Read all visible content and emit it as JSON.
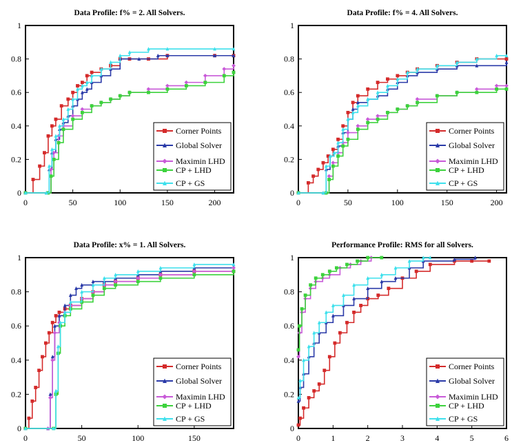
{
  "series_names": [
    "Corner Points",
    "Global Solver",
    "Maximin LHD",
    "CP + LHD",
    "CP + GS"
  ],
  "colors": {
    "Corner Points": "#d42a2a",
    "Global Solver": "#2a3aa8",
    "Maximin LHD": "#c85ad8",
    "CP + LHD": "#3cd23c",
    "CP + GS": "#3ee0ec"
  },
  "chart_data": [
    {
      "type": "line",
      "title": "Data Profile: f% = 2.   All Solvers.",
      "xlim": [
        0,
        220
      ],
      "ylim": [
        0,
        1
      ],
      "xticks": [
        0,
        50,
        100,
        150,
        200
      ],
      "yticks": [
        0,
        0.2,
        0.4,
        0.6,
        0.8,
        1
      ],
      "legend_position": "bottom-right",
      "series": [
        {
          "name": "Corner Points",
          "x": [
            0,
            8,
            15,
            20,
            24,
            28,
            32,
            38,
            45,
            50,
            55,
            60,
            65,
            70,
            80,
            90,
            100,
            110,
            130,
            150,
            200,
            220
          ],
          "y": [
            0,
            0.08,
            0.16,
            0.24,
            0.34,
            0.4,
            0.44,
            0.52,
            0.56,
            0.6,
            0.64,
            0.66,
            0.7,
            0.72,
            0.74,
            0.76,
            0.8,
            0.8,
            0.8,
            0.82,
            0.82,
            0.82
          ]
        },
        {
          "name": "Global Solver",
          "x": [
            0,
            22,
            25,
            28,
            32,
            36,
            40,
            45,
            50,
            55,
            60,
            65,
            70,
            80,
            90,
            100,
            120,
            140,
            150,
            200,
            220
          ],
          "y": [
            0,
            0,
            0.14,
            0.24,
            0.32,
            0.38,
            0.42,
            0.46,
            0.52,
            0.56,
            0.6,
            0.62,
            0.66,
            0.7,
            0.74,
            0.8,
            0.8,
            0.82,
            0.82,
            0.82,
            0.82
          ]
        },
        {
          "name": "Maximin LHD",
          "x": [
            0,
            24,
            27,
            30,
            35,
            40,
            50,
            60,
            70,
            80,
            90,
            100,
            110,
            130,
            150,
            170,
            190,
            210,
            220
          ],
          "y": [
            0,
            0,
            0.14,
            0.24,
            0.34,
            0.4,
            0.46,
            0.5,
            0.52,
            0.54,
            0.56,
            0.58,
            0.6,
            0.62,
            0.64,
            0.66,
            0.7,
            0.74,
            0.76
          ]
        },
        {
          "name": "CP + LHD",
          "x": [
            0,
            24,
            27,
            30,
            35,
            40,
            50,
            60,
            70,
            80,
            90,
            100,
            110,
            130,
            150,
            170,
            190,
            210,
            220
          ],
          "y": [
            0,
            0,
            0.1,
            0.2,
            0.3,
            0.38,
            0.44,
            0.48,
            0.52,
            0.54,
            0.56,
            0.58,
            0.6,
            0.6,
            0.62,
            0.64,
            0.66,
            0.7,
            0.72
          ]
        },
        {
          "name": "CP + GS",
          "x": [
            0,
            22,
            25,
            28,
            32,
            36,
            40,
            45,
            50,
            55,
            60,
            65,
            70,
            80,
            90,
            100,
            110,
            130,
            150,
            200,
            220
          ],
          "y": [
            0,
            0,
            0.16,
            0.26,
            0.34,
            0.4,
            0.44,
            0.5,
            0.56,
            0.62,
            0.64,
            0.66,
            0.7,
            0.74,
            0.78,
            0.82,
            0.84,
            0.86,
            0.86,
            0.86,
            0.86
          ]
        }
      ]
    },
    {
      "type": "line",
      "title": "Data Profile: f% = 4.   All Solvers.",
      "xlim": [
        0,
        210
      ],
      "ylim": [
        0,
        1
      ],
      "xticks": [
        0,
        50,
        100,
        150,
        200
      ],
      "yticks": [
        0,
        0.2,
        0.4,
        0.6,
        0.8,
        1
      ],
      "legend_position": "bottom-right",
      "series": [
        {
          "name": "Corner Points",
          "x": [
            0,
            10,
            15,
            20,
            25,
            30,
            35,
            40,
            45,
            50,
            55,
            60,
            70,
            80,
            90,
            100,
            110,
            120,
            140,
            160,
            180,
            210
          ],
          "y": [
            0,
            0.06,
            0.1,
            0.14,
            0.18,
            0.22,
            0.26,
            0.32,
            0.4,
            0.48,
            0.54,
            0.58,
            0.62,
            0.66,
            0.68,
            0.7,
            0.72,
            0.74,
            0.76,
            0.78,
            0.8,
            0.8
          ]
        },
        {
          "name": "Global Solver",
          "x": [
            0,
            25,
            28,
            32,
            36,
            40,
            45,
            50,
            55,
            60,
            70,
            80,
            90,
            100,
            110,
            120,
            140,
            160,
            180,
            210
          ],
          "y": [
            0,
            0,
            0.14,
            0.22,
            0.24,
            0.28,
            0.36,
            0.44,
            0.5,
            0.54,
            0.56,
            0.58,
            0.62,
            0.66,
            0.7,
            0.72,
            0.74,
            0.76,
            0.76,
            0.78
          ]
        },
        {
          "name": "Maximin LHD",
          "x": [
            0,
            28,
            31,
            35,
            40,
            45,
            50,
            60,
            70,
            80,
            90,
            100,
            110,
            120,
            140,
            160,
            180,
            200,
            210
          ],
          "y": [
            0,
            0,
            0.1,
            0.18,
            0.24,
            0.3,
            0.36,
            0.4,
            0.44,
            0.46,
            0.48,
            0.5,
            0.52,
            0.56,
            0.58,
            0.6,
            0.62,
            0.64,
            0.64
          ]
        },
        {
          "name": "CP + LHD",
          "x": [
            0,
            28,
            31,
            35,
            40,
            45,
            50,
            60,
            70,
            80,
            90,
            100,
            110,
            120,
            140,
            160,
            180,
            200,
            210
          ],
          "y": [
            0,
            0,
            0.08,
            0.16,
            0.22,
            0.28,
            0.32,
            0.38,
            0.42,
            0.44,
            0.48,
            0.5,
            0.52,
            0.54,
            0.58,
            0.6,
            0.6,
            0.62,
            0.62
          ]
        },
        {
          "name": "CP + GS",
          "x": [
            0,
            25,
            28,
            32,
            36,
            40,
            45,
            50,
            55,
            60,
            70,
            80,
            90,
            100,
            110,
            120,
            140,
            160,
            180,
            200,
            210
          ],
          "y": [
            0,
            0,
            0.16,
            0.22,
            0.24,
            0.3,
            0.38,
            0.44,
            0.48,
            0.52,
            0.56,
            0.6,
            0.64,
            0.68,
            0.72,
            0.74,
            0.76,
            0.78,
            0.8,
            0.82,
            0.82
          ]
        }
      ]
    },
    {
      "type": "line",
      "title": "Data Profile: x% = 1.   All Solvers.",
      "xlim": [
        0,
        185
      ],
      "ylim": [
        0,
        1
      ],
      "xticks": [
        0,
        50,
        100,
        150
      ],
      "yticks": [
        0,
        0.2,
        0.4,
        0.6,
        0.8,
        1
      ],
      "legend_position": "bottom-right",
      "series": [
        {
          "name": "Corner Points",
          "x": [
            0,
            3,
            6,
            9,
            12,
            15,
            18,
            21,
            24,
            27,
            30,
            35,
            40,
            50,
            60,
            70,
            80,
            100,
            120,
            150,
            185
          ],
          "y": [
            0,
            0.06,
            0.16,
            0.24,
            0.34,
            0.42,
            0.5,
            0.56,
            0.62,
            0.66,
            0.68,
            0.7,
            0.72,
            0.76,
            0.8,
            0.84,
            0.86,
            0.88,
            0.9,
            0.92,
            0.92
          ]
        },
        {
          "name": "Global Solver",
          "x": [
            0,
            20,
            22,
            24,
            26,
            30,
            35,
            40,
            45,
            50,
            60,
            70,
            80,
            100,
            120,
            150,
            185
          ],
          "y": [
            0,
            0,
            0.2,
            0.42,
            0.6,
            0.66,
            0.72,
            0.78,
            0.82,
            0.84,
            0.86,
            0.86,
            0.88,
            0.9,
            0.92,
            0.94,
            0.96
          ]
        },
        {
          "name": "Maximin LHD",
          "x": [
            0,
            20,
            22,
            24,
            26,
            30,
            35,
            40,
            50,
            60,
            70,
            80,
            100,
            120,
            150,
            185
          ],
          "y": [
            0,
            0,
            0.18,
            0.4,
            0.56,
            0.62,
            0.68,
            0.72,
            0.76,
            0.8,
            0.84,
            0.86,
            0.88,
            0.9,
            0.92,
            0.94
          ]
        },
        {
          "name": "CP + LHD",
          "x": [
            0,
            25,
            27,
            29,
            31,
            35,
            40,
            50,
            60,
            70,
            80,
            100,
            120,
            150,
            185
          ],
          "y": [
            0,
            0,
            0.2,
            0.44,
            0.6,
            0.66,
            0.7,
            0.74,
            0.78,
            0.82,
            0.84,
            0.86,
            0.88,
            0.9,
            0.92
          ]
        },
        {
          "name": "CP + GS",
          "x": [
            0,
            25,
            27,
            29,
            31,
            35,
            40,
            50,
            60,
            70,
            80,
            100,
            120,
            150,
            185
          ],
          "y": [
            0,
            0,
            0.22,
            0.48,
            0.62,
            0.68,
            0.74,
            0.8,
            0.84,
            0.88,
            0.9,
            0.92,
            0.94,
            0.96,
            0.96
          ]
        }
      ]
    },
    {
      "type": "line",
      "title": "Performance Profile:  RMS  for  all  Solvers.",
      "xlim": [
        0,
        6
      ],
      "ylim": [
        0,
        1
      ],
      "xticks": [
        0,
        1,
        2,
        3,
        4,
        5,
        6
      ],
      "yticks": [
        0,
        0.2,
        0.4,
        0.6,
        0.8,
        1
      ],
      "legend_position": "bottom-right",
      "series": [
        {
          "name": "Corner Points",
          "x": [
            0,
            0.05,
            0.15,
            0.3,
            0.45,
            0.6,
            0.75,
            0.9,
            1.05,
            1.2,
            1.4,
            1.6,
            1.8,
            2.0,
            2.3,
            2.6,
            3.0,
            3.4,
            3.8,
            4.5,
            5.0,
            5.5
          ],
          "y": [
            0.02,
            0.06,
            0.12,
            0.18,
            0.22,
            0.26,
            0.34,
            0.42,
            0.5,
            0.56,
            0.62,
            0.68,
            0.72,
            0.76,
            0.78,
            0.82,
            0.88,
            0.92,
            0.96,
            0.98,
            0.98,
            0.98
          ]
        },
        {
          "name": "Global Solver",
          "x": [
            0,
            0.05,
            0.15,
            0.3,
            0.45,
            0.6,
            0.8,
            1.0,
            1.3,
            1.6,
            2.0,
            2.4,
            2.8,
            3.2,
            3.6,
            4.5,
            5.1
          ],
          "y": [
            0.16,
            0.24,
            0.32,
            0.42,
            0.5,
            0.56,
            0.62,
            0.66,
            0.72,
            0.76,
            0.82,
            0.86,
            0.88,
            0.94,
            0.98,
            0.99,
            1.0
          ]
        },
        {
          "name": "Maximin LHD",
          "x": [
            0,
            0.03,
            0.1,
            0.2,
            0.35,
            0.5,
            0.7,
            0.9,
            1.2,
            1.5,
            1.8,
            2.1
          ],
          "y": [
            0.42,
            0.56,
            0.68,
            0.76,
            0.82,
            0.86,
            0.88,
            0.9,
            0.94,
            0.96,
            0.98,
            1.0
          ]
        },
        {
          "name": "CP + LHD",
          "x": [
            0,
            0.03,
            0.1,
            0.2,
            0.35,
            0.5,
            0.7,
            0.9,
            1.1,
            1.4,
            1.7,
            2.0,
            2.4
          ],
          "y": [
            0.46,
            0.6,
            0.7,
            0.78,
            0.84,
            0.88,
            0.9,
            0.92,
            0.94,
            0.96,
            0.98,
            1.0,
            1.0
          ]
        },
        {
          "name": "CP + GS",
          "x": [
            0,
            0.05,
            0.15,
            0.3,
            0.45,
            0.6,
            0.8,
            1.0,
            1.3,
            1.6,
            2.0,
            2.4,
            2.8,
            3.2,
            3.6,
            3.8
          ],
          "y": [
            0.18,
            0.28,
            0.4,
            0.48,
            0.56,
            0.62,
            0.68,
            0.72,
            0.78,
            0.84,
            0.88,
            0.9,
            0.94,
            0.98,
            1.0,
            1.0
          ]
        }
      ]
    }
  ]
}
